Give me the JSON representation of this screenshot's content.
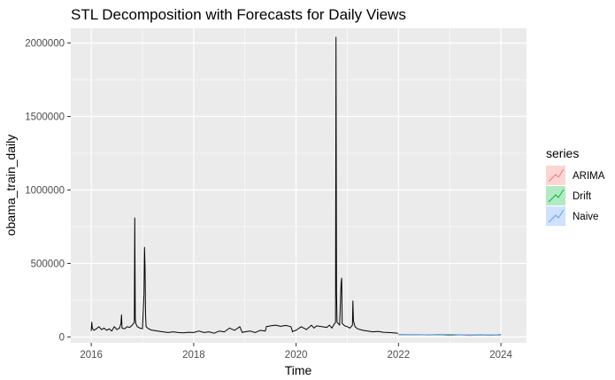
{
  "chart_data": {
    "type": "line",
    "title": "STL Decomposition with Forecasts for Daily Views",
    "xlabel": "Time",
    "ylabel": "obama_train_daily",
    "xlim": [
      2015.6,
      2024.5
    ],
    "ylim": [
      -40000,
      2100000
    ],
    "x_ticks": [
      2016,
      2018,
      2020,
      2022,
      2024
    ],
    "y_ticks": [
      0,
      500000,
      1000000,
      1500000,
      2000000
    ],
    "y_tick_labels": [
      "0",
      "500000",
      "1000000",
      "1500000",
      "2000000"
    ],
    "grid": true,
    "legend": {
      "title": "series",
      "position": "right",
      "entries": [
        {
          "name": "ARIMA",
          "color": "#F8766D",
          "fill": "#F8766D"
        },
        {
          "name": "Drift",
          "color": "#00BA38",
          "fill": "#00BA38"
        },
        {
          "name": "Naive",
          "color": "#619CFF",
          "fill": "#619CFF"
        }
      ]
    },
    "series": [
      {
        "name": "obama_train_daily",
        "color": "#000000",
        "x": [
          2016.0,
          2016.01,
          2016.02,
          2016.05,
          2016.1,
          2016.15,
          2016.2,
          2016.25,
          2016.3,
          2016.35,
          2016.4,
          2016.45,
          2016.5,
          2016.55,
          2016.58,
          2016.59,
          2016.6,
          2016.65,
          2016.7,
          2016.75,
          2016.8,
          2016.84,
          2016.85,
          2016.86,
          2016.87,
          2016.9,
          2016.95,
          2017.0,
          2017.03,
          2017.04,
          2017.05,
          2017.06,
          2017.07,
          2017.1,
          2017.15,
          2017.2,
          2017.3,
          2017.4,
          2017.5,
          2017.6,
          2017.7,
          2017.8,
          2017.9,
          2018.0,
          2018.1,
          2018.2,
          2018.3,
          2018.4,
          2018.5,
          2018.6,
          2018.7,
          2018.8,
          2018.9,
          2018.95,
          2019.0,
          2019.1,
          2019.2,
          2019.3,
          2019.4,
          2019.42,
          2019.5,
          2019.6,
          2019.7,
          2019.8,
          2019.9,
          2019.93,
          2019.95,
          2020.0,
          2020.1,
          2020.2,
          2020.3,
          2020.35,
          2020.4,
          2020.5,
          2020.6,
          2020.65,
          2020.7,
          2020.75,
          2020.77,
          2020.78,
          2020.79,
          2020.8,
          2020.85,
          2020.88,
          2020.89,
          2020.9,
          2020.95,
          2021.0,
          2021.05,
          2021.1,
          2021.11,
          2021.12,
          2021.15,
          2021.2,
          2021.3,
          2021.4,
          2021.5,
          2021.6,
          2021.7,
          2021.8,
          2021.9,
          2021.99
        ],
        "y": [
          40000,
          100000,
          60000,
          45000,
          55000,
          70000,
          50000,
          60000,
          45000,
          55000,
          40000,
          70000,
          50000,
          60000,
          90000,
          150000,
          60000,
          55000,
          70000,
          65000,
          80000,
          100000,
          810000,
          120000,
          90000,
          70000,
          60000,
          55000,
          290000,
          610000,
          480000,
          150000,
          70000,
          60000,
          50000,
          45000,
          40000,
          35000,
          30000,
          35000,
          30000,
          28000,
          32000,
          30000,
          40000,
          30000,
          35000,
          25000,
          40000,
          35000,
          60000,
          45000,
          70000,
          30000,
          35000,
          40000,
          30000,
          45000,
          40000,
          70000,
          75000,
          80000,
          72000,
          78000,
          70000,
          35000,
          40000,
          45000,
          70000,
          50000,
          80000,
          60000,
          75000,
          70000,
          65000,
          80000,
          60000,
          90000,
          100000,
          2040000,
          300000,
          100000,
          80000,
          370000,
          400000,
          90000,
          75000,
          70000,
          60000,
          80000,
          245000,
          110000,
          70000,
          55000,
          45000,
          40000,
          35000,
          38000,
          32000,
          30000,
          28000,
          25000
        ]
      },
      {
        "name": "ARIMA",
        "color": "#F8766D",
        "x": [
          2022.0,
          2022.2,
          2022.4,
          2022.6,
          2022.8,
          2023.0,
          2023.2,
          2023.4,
          2023.6,
          2023.8,
          2024.0
        ],
        "y": [
          18000,
          15000,
          16000,
          13000,
          17000,
          10000,
          15000,
          9000,
          16000,
          10000,
          18000
        ]
      },
      {
        "name": "Drift",
        "color": "#00BA38",
        "x": [
          2022.0,
          2024.0
        ],
        "y": [
          15000,
          13000
        ]
      },
      {
        "name": "Naive",
        "color": "#619CFF",
        "x": [
          2022.0,
          2022.5,
          2023.0,
          2023.5,
          2024.0
        ],
        "y": [
          16000,
          14000,
          17000,
          12000,
          15000
        ]
      }
    ]
  }
}
